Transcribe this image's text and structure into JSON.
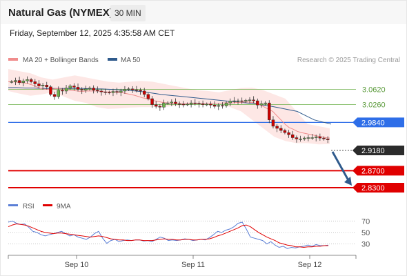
{
  "header": {
    "title": "Natural Gas (NYMEX)",
    "timeframe": "30 MIN",
    "timestamp": "Friday, September 12, 2025 4:35:58 AM CET"
  },
  "legend": {
    "ma20_label": "MA 20 + Bollinger Bands",
    "ma50_label": "MA 50",
    "credit": "Research © 2025 Trading Central",
    "colors": {
      "ma20": "#f08c8c",
      "ma50": "#2f5a8c",
      "band": "#fde3e0"
    }
  },
  "rsi_legend": {
    "rsi_label": "RSI",
    "ma9_label": "9MA",
    "colors": {
      "rsi": "#5b7fd6",
      "ma9": "#e00000"
    }
  },
  "chart_data": [
    {
      "type": "line",
      "title": "",
      "y_range": [
        2.83,
        3.11
      ],
      "x_range": [
        "Sep 9 20:00",
        "Sep 12 04:30"
      ],
      "x_ticks": [
        "Sep 10",
        "Sep 11",
        "Sep 12"
      ],
      "grid": false,
      "series": [
        {
          "name": "Price",
          "style": "candlestick",
          "approx_close": [
            3.08,
            3.083,
            3.078,
            3.082,
            3.085,
            3.08,
            3.075,
            3.07,
            3.072,
            3.068,
            3.05,
            3.045,
            3.06,
            3.058,
            3.065,
            3.07,
            3.067,
            3.062,
            3.06,
            3.063,
            3.065,
            3.06,
            3.058,
            3.056,
            3.055,
            3.054,
            3.057,
            3.055,
            3.058,
            3.062,
            3.063,
            3.061,
            3.06,
            3.058,
            3.05,
            3.04,
            3.026,
            3.022,
            3.02,
            3.03,
            3.03,
            3.032,
            3.028,
            3.027,
            3.026,
            3.027,
            3.03,
            3.029,
            3.028,
            3.026,
            3.027,
            3.025,
            3.022,
            3.024,
            3.023,
            3.03,
            3.034,
            3.035,
            3.035,
            3.034,
            3.036,
            3.037,
            3.035,
            3.025,
            3.028,
            3.03,
            2.99,
            2.975,
            2.97,
            2.965,
            2.96,
            2.955,
            2.948,
            2.945,
            2.945,
            2.947,
            2.948,
            2.948,
            2.95,
            2.947,
            2.945,
            2.943
          ]
        },
        {
          "name": "MA 20",
          "approx_values": [
            3.08,
            3.08,
            3.079,
            3.078,
            3.077,
            3.075,
            3.072,
            3.068,
            3.064,
            3.062,
            3.062,
            3.063,
            3.064,
            3.063,
            3.062,
            3.06,
            3.059,
            3.058,
            3.057,
            3.058,
            3.058,
            3.058,
            3.058,
            3.057,
            3.056,
            3.056,
            3.056,
            3.055,
            3.054,
            3.052,
            3.05,
            3.048,
            3.045,
            3.042,
            3.04,
            3.037,
            3.035,
            3.033,
            3.031,
            3.03,
            3.029,
            3.028,
            3.028,
            3.028,
            3.028,
            3.028,
            3.028,
            3.028,
            3.028,
            3.028,
            3.029,
            3.029,
            3.029,
            3.03,
            3.03,
            3.03,
            3.031,
            3.031,
            3.032,
            3.032,
            3.031,
            3.029,
            3.025,
            3.02,
            3.015,
            3.01,
            3.0,
            2.99,
            2.98,
            2.972,
            2.968,
            2.963,
            2.96,
            2.958,
            2.956,
            2.954,
            2.952,
            2.95,
            2.948,
            2.947
          ]
        },
        {
          "name": "MA 50",
          "approx_values": [
            3.066,
            3.066,
            3.065,
            3.065,
            3.064,
            3.064,
            3.064,
            3.064,
            3.064,
            3.064,
            3.063,
            3.063,
            3.062,
            3.061,
            3.06,
            3.058,
            3.056,
            3.053,
            3.05,
            3.048,
            3.046,
            3.044,
            3.042,
            3.04,
            3.038,
            3.036,
            3.034,
            3.032,
            3.03,
            3.028,
            3.025,
            3.022,
            3.018,
            3.014,
            3.01,
            3.0,
            2.99,
            2.985,
            2.98
          ]
        },
        {
          "name": "Bollinger upper",
          "approx_values": [
            3.11,
            3.105,
            3.1,
            3.09,
            3.085,
            3.09,
            3.095,
            3.09,
            3.085,
            3.08,
            3.078,
            3.08,
            3.082,
            3.08,
            3.075,
            3.07,
            3.065,
            3.06,
            3.058,
            3.055,
            3.06,
            3.065,
            3.066,
            3.06,
            3.05,
            3.04,
            3.01,
            2.98,
            2.975,
            2.97
          ]
        },
        {
          "name": "Bollinger lower",
          "approx_values": [
            3.058,
            3.052,
            3.047,
            3.05,
            3.055,
            3.045,
            3.035,
            3.03,
            3.02,
            3.016,
            3.017,
            3.019,
            3.02,
            3.02,
            3.02,
            3.023,
            3.025,
            3.027,
            3.03,
            3.03,
            3.02,
            3.01,
            2.99,
            2.97,
            2.95,
            2.94,
            2.935,
            2.935,
            2.932,
            2.933
          ]
        }
      ],
      "levels": [
        {
          "label": "3.0620",
          "value": 3.062,
          "color": "#6cb04a",
          "style": "thin"
        },
        {
          "label": "3.0260",
          "value": 3.026,
          "color": "#6cb04a",
          "style": "thin"
        },
        {
          "label": "2.9840",
          "value": 2.984,
          "color": "#2e6ee8",
          "style": "line"
        },
        {
          "label": "2.9180",
          "value": 2.918,
          "color": "#2b2b2b",
          "style": "current"
        },
        {
          "label": "2.8700",
          "value": 2.87,
          "color": "#e00000",
          "style": "thick"
        },
        {
          "label": "2.8300",
          "value": 2.83,
          "color": "#e00000",
          "style": "thick"
        }
      ],
      "annotation": {
        "type": "arrow",
        "direction": "down",
        "color": "#2f5a8c",
        "from": 2.918,
        "to": 2.83
      }
    },
    {
      "type": "line",
      "title": "",
      "y_ticks": [
        70,
        50,
        30
      ],
      "y_range": [
        15,
        80
      ],
      "series": [
        {
          "name": "RSI",
          "approx_values": [
            68,
            70,
            66,
            64,
            65,
            59,
            52,
            50,
            46,
            44,
            46,
            48,
            50,
            52,
            48,
            44,
            46,
            42,
            40,
            38,
            42,
            48,
            52,
            40,
            31,
            36,
            38,
            34,
            36,
            37,
            36,
            37,
            37,
            35,
            36,
            34,
            38,
            42,
            40,
            36,
            37,
            36,
            37,
            39,
            38,
            36,
            37,
            38,
            37,
            41,
            46,
            52,
            50,
            54,
            56,
            60,
            66,
            68,
            56,
            42,
            40,
            38,
            36,
            30,
            34,
            28,
            24,
            26,
            22,
            24,
            23,
            25,
            26,
            28,
            26,
            29,
            27,
            27,
            28
          ]
        },
        {
          "name": "9MA",
          "approx_values": [
            60,
            63,
            65,
            64,
            63,
            61,
            58,
            55,
            52,
            50,
            49,
            48,
            49,
            49,
            48,
            47,
            46,
            45,
            44,
            43,
            42,
            43,
            44,
            43,
            41,
            39,
            38,
            37,
            37,
            36,
            36,
            37,
            37,
            36,
            36,
            36,
            37,
            38,
            39,
            38,
            38,
            37,
            37,
            38,
            38,
            37,
            37,
            38,
            38,
            39,
            41,
            44,
            46,
            49,
            52,
            55,
            58,
            62,
            63,
            60,
            55,
            50,
            46,
            42,
            39,
            36,
            32,
            30,
            28,
            27,
            25,
            25,
            24,
            25,
            25,
            26,
            26,
            27,
            27
          ]
        }
      ]
    }
  ]
}
